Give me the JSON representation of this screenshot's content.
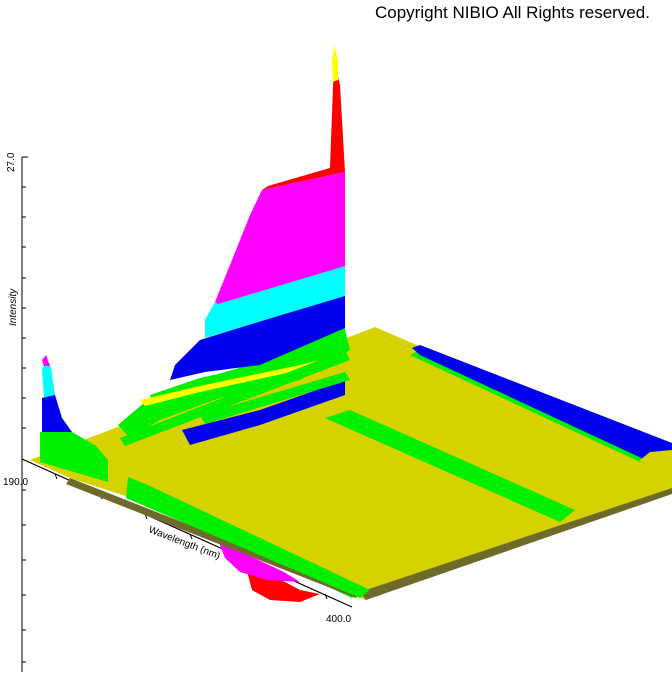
{
  "copyright": "Copyright NIBIO All Rights reserved.",
  "chart_data": {
    "type": "surface-3d",
    "zlabel": "Intensity",
    "xlabel": "Wavelength (nm)",
    "ylabel": "",
    "x_tick_labels": [
      "190.0",
      "400.0"
    ],
    "z_tick_labels": [
      "27.0"
    ],
    "grid": false,
    "colors": {
      "level_0": "#d6d200",
      "level_1": "#00ee00",
      "level_2": "#0000ee",
      "level_3": "#00ffff",
      "level_4": "#ff00ff",
      "level_5": "#ff0000",
      "level_6": "#ffff00",
      "floor": "#d6d200",
      "shadow": "#6e6a2a"
    }
  }
}
